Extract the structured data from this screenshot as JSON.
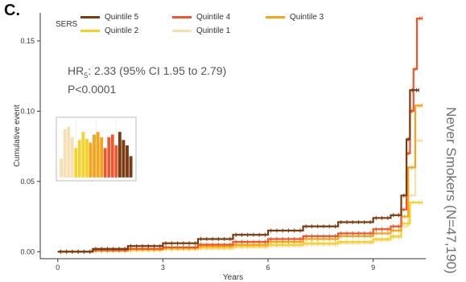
{
  "panel_label": "C.",
  "side_label": "Never Smokers (N=47,190)",
  "annotation": {
    "hr_prefix": "HR",
    "hr_subscript": "5",
    "hr_value": ": 2.33 (95% CI 1.95 to 2.79)",
    "p_value": "P<0.0001"
  },
  "colors": {
    "quintile5": "#7a3b10",
    "quintile4": "#f2542c",
    "quintile3": "#f5a41c",
    "quintile2": "#f5d22a",
    "quintile1": "#f7dfb0",
    "axis": "#333333",
    "grid": "none"
  },
  "legend": {
    "title": "SERS",
    "items": [
      "Quintile 5",
      "Quintile 4",
      "Quintile 3",
      "Quintile 2",
      "Quintile 1"
    ]
  },
  "chart_data": {
    "type": "line",
    "step": true,
    "xlabel": "Years",
    "ylabel": "Cumulative event",
    "xlim": [
      -0.5,
      10.5
    ],
    "ylim": [
      -0.005,
      0.17
    ],
    "xticks": [
      0,
      3,
      6,
      9
    ],
    "yticks": [
      "0.00",
      "0.05",
      "0.10",
      "0.15"
    ],
    "grid": false,
    "legend_position": "top-left",
    "series": [
      {
        "name": "Quintile 5",
        "color_key": "quintile5",
        "x": [
          0,
          1,
          2,
          3,
          4,
          5,
          6,
          7,
          8,
          9,
          9.5,
          9.8,
          9.95,
          10.05,
          10.3
        ],
        "y": [
          0,
          0.002,
          0.004,
          0.006,
          0.009,
          0.012,
          0.015,
          0.018,
          0.021,
          0.024,
          0.026,
          0.04,
          0.08,
          0.115,
          0.115
        ]
      },
      {
        "name": "Quintile 4",
        "color_key": "quintile4",
        "x": [
          0,
          1,
          2,
          3,
          4,
          5,
          6,
          7,
          8,
          9,
          9.5,
          9.8,
          9.95,
          10.05,
          10.15,
          10.25,
          10.4
        ],
        "y": [
          0,
          0.001,
          0.002,
          0.003,
          0.005,
          0.007,
          0.009,
          0.011,
          0.013,
          0.016,
          0.018,
          0.03,
          0.07,
          0.1,
          0.13,
          0.166,
          0.166
        ]
      },
      {
        "name": "Quintile 3",
        "color_key": "quintile3",
        "x": [
          0,
          1,
          2,
          3,
          4,
          5,
          6,
          7,
          8,
          9,
          9.5,
          9.8,
          10,
          10.2,
          10.4
        ],
        "y": [
          0,
          0.001,
          0.002,
          0.003,
          0.004,
          0.005,
          0.007,
          0.009,
          0.011,
          0.013,
          0.015,
          0.025,
          0.06,
          0.104,
          0.104
        ]
      },
      {
        "name": "Quintile 2",
        "color_key": "quintile2",
        "x": [
          0,
          1,
          2,
          3,
          4,
          5,
          6,
          7,
          8,
          9,
          9.5,
          9.8,
          10.05,
          10.4
        ],
        "y": [
          0,
          0.0005,
          0.001,
          0.002,
          0.003,
          0.004,
          0.005,
          0.006,
          0.007,
          0.009,
          0.011,
          0.02,
          0.035,
          0.035
        ]
      },
      {
        "name": "Quintile 1",
        "color_key": "quintile1",
        "x": [
          0,
          1,
          2,
          3,
          4,
          5,
          6,
          7,
          8,
          9,
          9.5,
          9.8,
          10,
          10.2,
          10.4
        ],
        "y": [
          0,
          0.0005,
          0.001,
          0.0015,
          0.002,
          0.003,
          0.004,
          0.005,
          0.006,
          0.008,
          0.01,
          0.018,
          0.04,
          0.079,
          0.079
        ]
      }
    ],
    "inset": {
      "type": "bar",
      "description_free": true,
      "groups": [
        "quintile1",
        "quintile2",
        "quintile3",
        "quintile4",
        "quintile5"
      ],
      "values": [
        [
          0.35,
          0.9,
          0.95,
          0.75
        ],
        [
          0.55,
          0.7,
          0.85,
          0.72
        ],
        [
          0.65,
          0.8,
          0.85,
          0.75
        ],
        [
          0.55,
          0.75,
          0.8,
          0.6
        ],
        [
          0.85,
          0.7,
          0.6,
          0.4
        ]
      ]
    }
  }
}
